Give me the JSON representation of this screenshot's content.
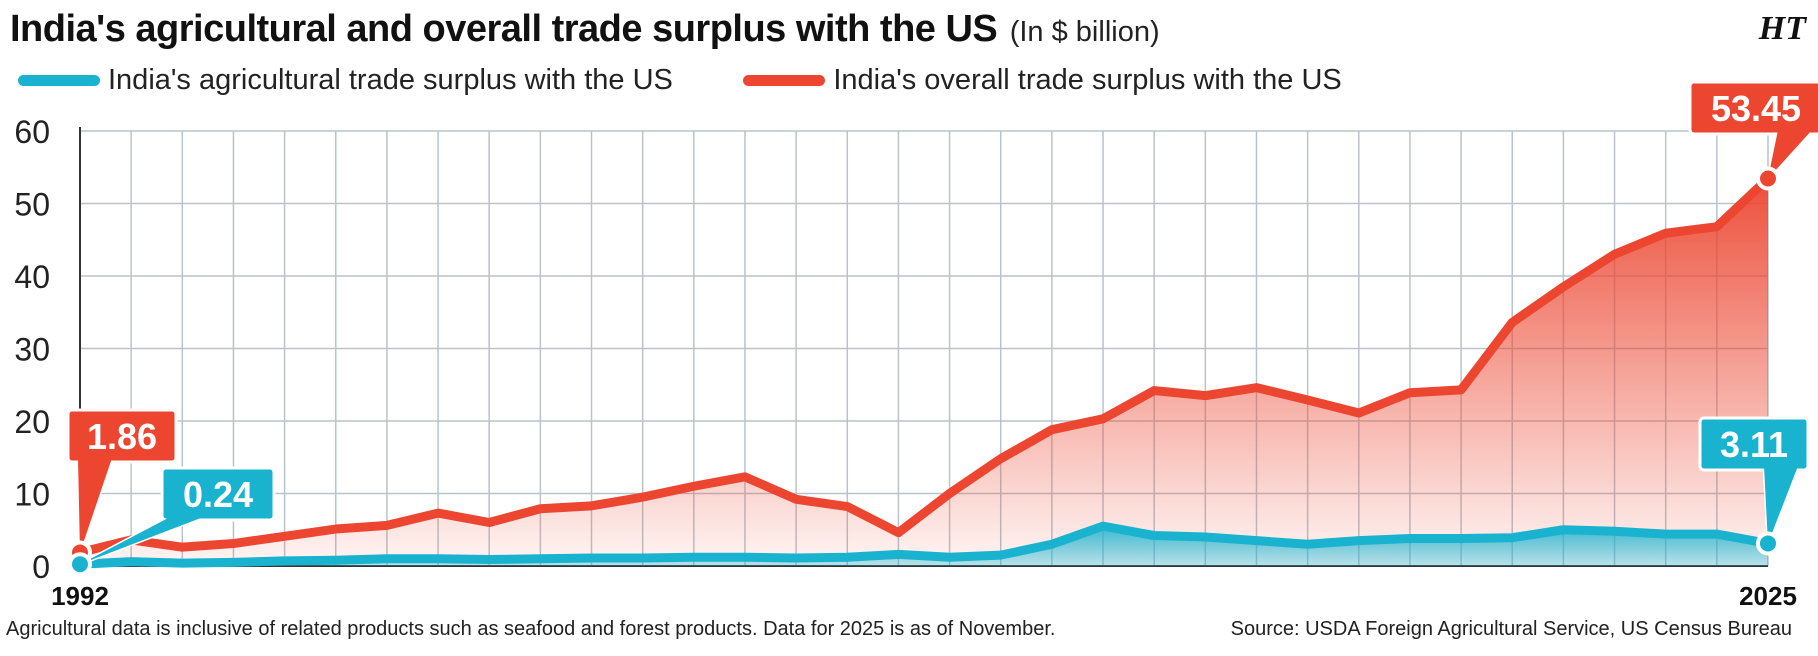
{
  "header": {
    "title": "India's agricultural and overall trade surplus with the US",
    "unit": "(In $ billion)",
    "logo": "HT"
  },
  "legend": [
    {
      "label": "India's agricultural trade surplus with the US",
      "color": "#1ab3cf"
    },
    {
      "label": "India's overall trade surplus with the US",
      "color": "#ec4631"
    }
  ],
  "colors": {
    "agri": "#1ab3cf",
    "overall": "#ec4631",
    "grid": "#b9c3cc",
    "axis": "#333333"
  },
  "chart_data": {
    "type": "area",
    "x": [
      1992,
      1993,
      1994,
      1995,
      1996,
      1997,
      1998,
      1999,
      2000,
      2001,
      2002,
      2003,
      2004,
      2005,
      2006,
      2007,
      2008,
      2009,
      2010,
      2011,
      2012,
      2013,
      2014,
      2015,
      2016,
      2017,
      2018,
      2019,
      2020,
      2021,
      2022,
      2023,
      2024,
      2025
    ],
    "x_tick_labels": [
      "1992",
      "2025"
    ],
    "ylim": [
      0,
      60
    ],
    "y_ticks": [
      0,
      10,
      20,
      30,
      40,
      50,
      60
    ],
    "grid": true,
    "legend_position": "top-left",
    "series": [
      {
        "name": "India's agricultural trade surplus with the US",
        "values": [
          0.24,
          0.6,
          0.4,
          0.5,
          0.7,
          0.8,
          1.0,
          1.0,
          0.9,
          1.0,
          1.1,
          1.1,
          1.2,
          1.2,
          1.1,
          1.2,
          1.6,
          1.2,
          1.5,
          3.0,
          5.5,
          4.2,
          4.0,
          3.5,
          3.0,
          3.5,
          3.8,
          3.8,
          3.9,
          5.0,
          4.8,
          4.4,
          4.4,
          3.11
        ]
      },
      {
        "name": "India's overall trade surplus with the US",
        "values": [
          1.86,
          3.6,
          2.6,
          3.1,
          4.1,
          5.1,
          5.6,
          7.3,
          6.0,
          7.9,
          8.3,
          9.5,
          11.0,
          12.3,
          9.2,
          8.2,
          4.6,
          10.0,
          14.8,
          18.8,
          20.3,
          24.2,
          23.5,
          24.6,
          22.9,
          21.1,
          23.9,
          24.3,
          33.6,
          38.5,
          43.0,
          45.9,
          46.8,
          53.45
        ]
      }
    ],
    "annotations": [
      {
        "label": "1.86",
        "series": 1,
        "x": 1992
      },
      {
        "label": "0.24",
        "series": 0,
        "x": 1992
      },
      {
        "label": "53.45",
        "series": 1,
        "x": 2025
      },
      {
        "label": "3.11",
        "series": 0,
        "x": 2025
      }
    ]
  },
  "footnote": "Agricultural data is inclusive of related products such as seafood and forest products. Data for 2025 is as of November.",
  "source": "Source: USDA Foreign Agricultural Service, US Census Bureau"
}
